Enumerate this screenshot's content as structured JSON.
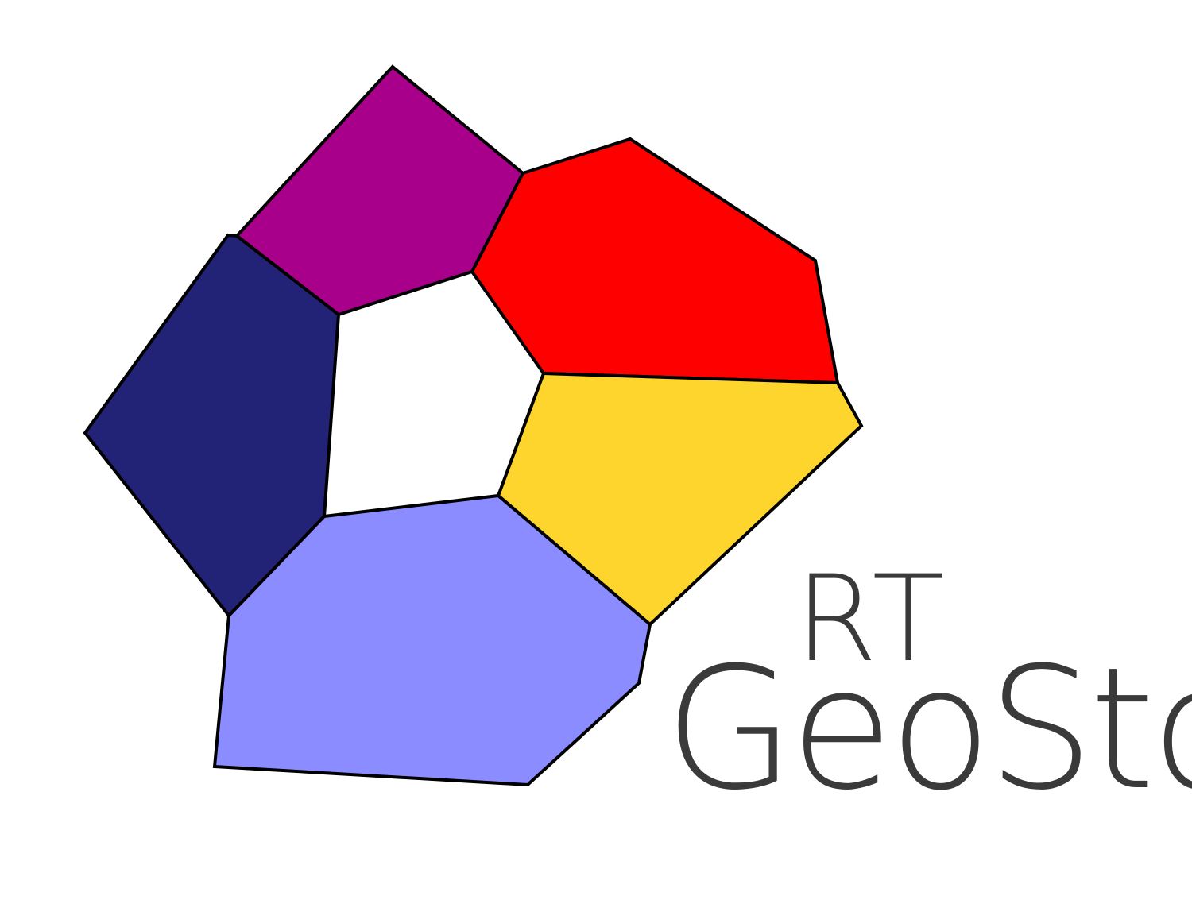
{
  "logo": {
    "abbreviation": "RT",
    "name": "GeoSto"
  },
  "colors": {
    "cell_purple": "#a8008a",
    "cell_red": "#ff0000",
    "cell_navy": "#222277",
    "cell_yellow": "#fdd52d",
    "cell_periwinkle": "#8a8cff",
    "cell_outline": "#000000",
    "text": "#3a3a3a",
    "background": "#ffffff"
  }
}
